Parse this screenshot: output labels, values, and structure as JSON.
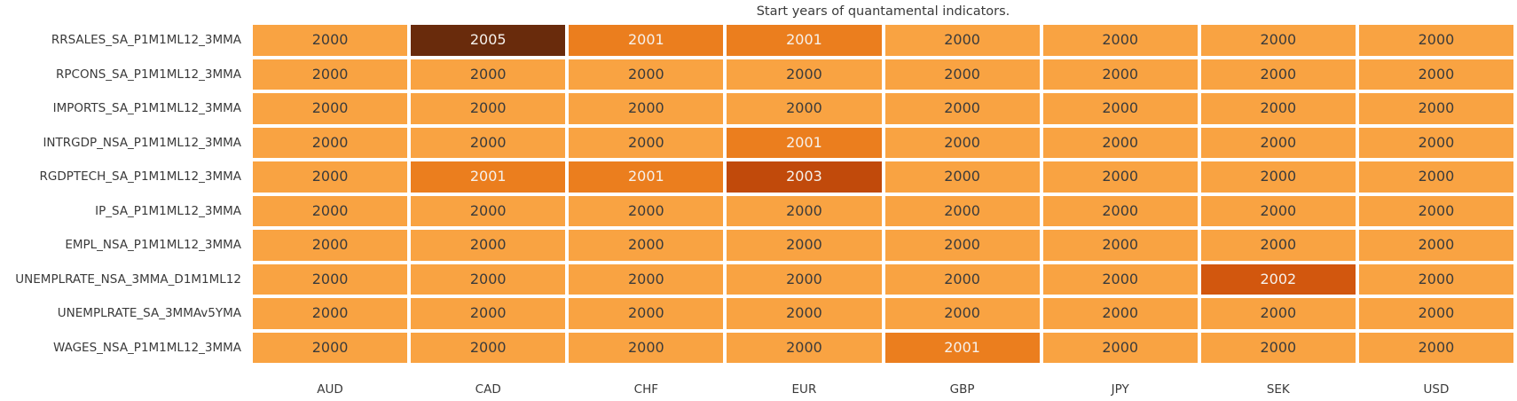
{
  "chart_data": {
    "type": "heatmap",
    "title": "Start years of quantamental indicators.",
    "columns": [
      "AUD",
      "CAD",
      "CHF",
      "EUR",
      "GBP",
      "JPY",
      "SEK",
      "USD"
    ],
    "rows": [
      {
        "label": "RRSALES_SA_P1M1ML12_3MMA",
        "values": [
          2000,
          2005,
          2001,
          2001,
          2000,
          2000,
          2000,
          2000
        ]
      },
      {
        "label": "RPCONS_SA_P1M1ML12_3MMA",
        "values": [
          2000,
          2000,
          2000,
          2000,
          2000,
          2000,
          2000,
          2000
        ]
      },
      {
        "label": "IMPORTS_SA_P1M1ML12_3MMA",
        "values": [
          2000,
          2000,
          2000,
          2000,
          2000,
          2000,
          2000,
          2000
        ]
      },
      {
        "label": "INTRGDP_NSA_P1M1ML12_3MMA",
        "values": [
          2000,
          2000,
          2000,
          2001,
          2000,
          2000,
          2000,
          2000
        ]
      },
      {
        "label": "RGDPTECH_SA_P1M1ML12_3MMA",
        "values": [
          2000,
          2001,
          2001,
          2003,
          2000,
          2000,
          2000,
          2000
        ]
      },
      {
        "label": "IP_SA_P1M1ML12_3MMA",
        "values": [
          2000,
          2000,
          2000,
          2000,
          2000,
          2000,
          2000,
          2000
        ]
      },
      {
        "label": "EMPL_NSA_P1M1ML12_3MMA",
        "values": [
          2000,
          2000,
          2000,
          2000,
          2000,
          2000,
          2000,
          2000
        ]
      },
      {
        "label": "UNEMPLRATE_NSA_3MMA_D1M1ML12",
        "values": [
          2000,
          2000,
          2000,
          2000,
          2000,
          2000,
          2002,
          2000
        ]
      },
      {
        "label": "UNEMPLRATE_SA_3MMAv5YMA",
        "values": [
          2000,
          2000,
          2000,
          2000,
          2000,
          2000,
          2000,
          2000
        ]
      },
      {
        "label": "WAGES_NSA_P1M1ML12_3MMA",
        "values": [
          2000,
          2000,
          2000,
          2000,
          2001,
          2000,
          2000,
          2000
        ]
      }
    ],
    "value_range": [
      2000,
      2005
    ],
    "value_colors": {
      "2000": {
        "bg": "#F9A342",
        "text": "#3b3b3b"
      },
      "2001": {
        "bg": "#EB7E1E",
        "text": "#f6f1ec"
      },
      "2002": {
        "bg": "#D2570E",
        "text": "#f6f1ec"
      },
      "2003": {
        "bg": "#C14A0B",
        "text": "#f6f1ec"
      },
      "2005": {
        "bg": "#692B0C",
        "text": "#f6f1ec"
      }
    },
    "grid_gap_color": "#ffffff",
    "legend": "none",
    "xlabel": "",
    "ylabel": ""
  }
}
